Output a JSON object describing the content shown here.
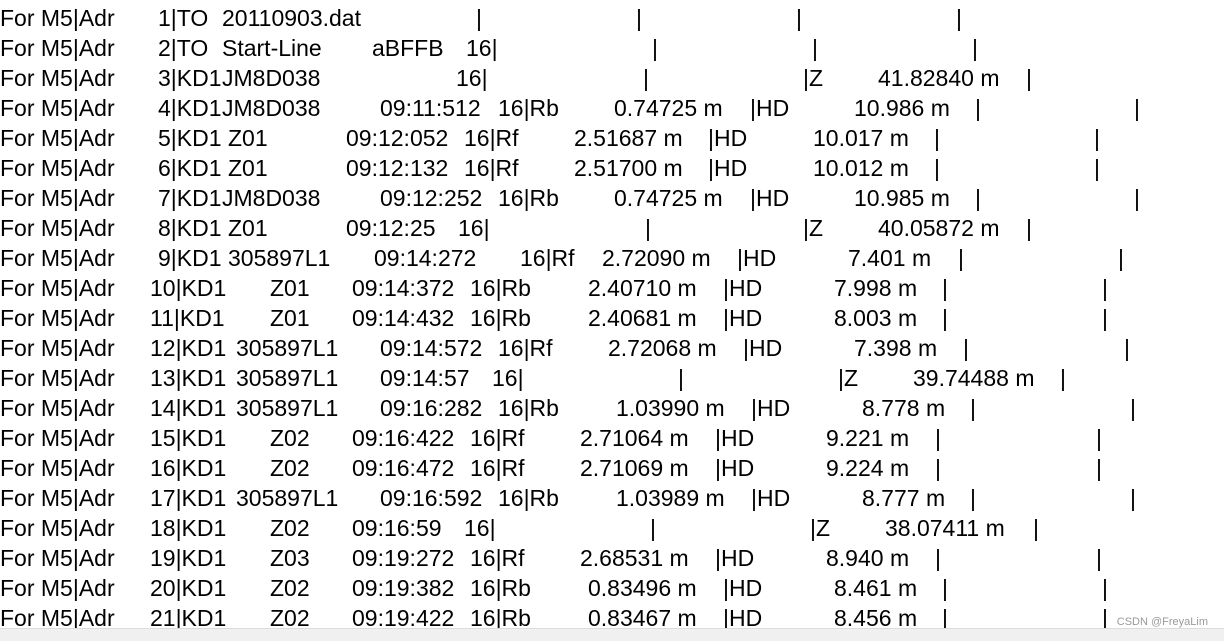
{
  "lines": [
    [
      "For M5|Adr",
      "1|TO",
      "20110903.dat",
      "|",
      "|",
      "|",
      "|"
    ],
    [
      "For M5|Adr",
      "2|TO",
      "Start-Line",
      "aBFFB",
      "16|",
      "|",
      "|",
      "|"
    ],
    [
      "For M5|Adr",
      "3|KD1",
      "JM8D038",
      "16|",
      "|",
      "|Z",
      "41.82840 m",
      "|"
    ],
    [
      "For M5|Adr",
      "4|KD1",
      "JM8D038",
      "09:11:512",
      "16|Rb",
      "0.74725 m",
      "|HD",
      "10.986 m",
      "|",
      "|"
    ],
    [
      "For M5|Adr",
      "5|KD1",
      "Z01",
      "09:12:052",
      "16|Rf",
      "2.51687 m",
      "|HD",
      "10.017 m",
      "|",
      "|"
    ],
    [
      "For M5|Adr",
      "6|KD1",
      "Z01",
      "09:12:132",
      "16|Rf",
      "2.51700 m",
      "|HD",
      "10.012 m",
      "|",
      "|"
    ],
    [
      "For M5|Adr",
      "7|KD1",
      "JM8D038",
      "09:12:252",
      "16|Rb",
      "0.74725 m",
      "|HD",
      "10.985 m",
      "|",
      "|"
    ],
    [
      "For M5|Adr",
      "8|KD1",
      "Z01",
      "09:12:25",
      "16|",
      "|",
      "|Z",
      "40.05872 m",
      "|"
    ],
    [
      "For M5|Adr",
      "9|KD1",
      "305897L1",
      "09:14:272",
      "16|Rf",
      "2.72090 m",
      "|HD",
      "7.401 m",
      "|",
      "|"
    ],
    [
      "For M5|Adr",
      "10|KD1",
      "Z01",
      "09:14:372",
      "16|Rb",
      "2.40710 m",
      "|HD",
      "7.998 m",
      "|",
      "|"
    ],
    [
      "For M5|Adr",
      "11|KD1",
      "Z01",
      "09:14:432",
      "16|Rb",
      "2.40681 m",
      "|HD",
      "8.003 m",
      "|",
      "|"
    ],
    [
      "For M5|Adr",
      "12|KD1",
      "305897L1",
      "09:14:572",
      "16|Rf",
      "2.72068 m",
      "|HD",
      "7.398 m",
      "|",
      "|"
    ],
    [
      "For M5|Adr",
      "13|KD1",
      "305897L1",
      "09:14:57",
      "16|",
      "|",
      "|Z",
      "39.74488 m",
      "|"
    ],
    [
      "For M5|Adr",
      "14|KD1",
      "305897L1",
      "09:16:282",
      "16|Rb",
      "1.03990 m",
      "|HD",
      "8.778 m",
      "|",
      "|"
    ],
    [
      "For M5|Adr",
      "15|KD1",
      "Z02",
      "09:16:422",
      "16|Rf",
      "2.71064 m",
      "|HD",
      "9.221 m",
      "|",
      "|"
    ],
    [
      "For M5|Adr",
      "16|KD1",
      "Z02",
      "09:16:472",
      "16|Rf",
      "2.71069 m",
      "|HD",
      "9.224 m",
      "|",
      "|"
    ],
    [
      "For M5|Adr",
      "17|KD1",
      "305897L1",
      "09:16:592",
      "16|Rb",
      "1.03989 m",
      "|HD",
      "8.777 m",
      "|",
      "|"
    ],
    [
      "For M5|Adr",
      "18|KD1",
      "Z02",
      "09:16:59",
      "16|",
      "|",
      "|Z",
      "38.07411 m",
      "|"
    ],
    [
      "For M5|Adr",
      "19|KD1",
      "Z03",
      "09:19:272",
      "16|Rf",
      "2.68531 m",
      "|HD",
      "8.940 m",
      "|",
      "|"
    ],
    [
      "For M5|Adr",
      "20|KD1",
      "Z02",
      "09:19:382",
      "16|Rb",
      "0.83496 m",
      "|HD",
      "8.461 m",
      "|",
      "|"
    ],
    [
      "For M5|Adr",
      "21|KD1",
      "Z02",
      "09:19:422",
      "16|Rb",
      "0.83467 m",
      "|HD",
      "8.456 m",
      "|",
      "|"
    ]
  ],
  "watermark": "CSDN @FreyaLim"
}
